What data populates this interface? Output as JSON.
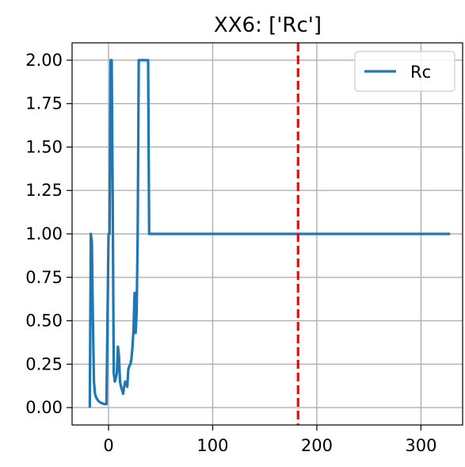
{
  "chart_data": {
    "type": "line",
    "title": "XX6: ['Rc']",
    "xlabel": "",
    "ylabel": "",
    "xlim": [
      -35,
      340
    ],
    "ylim": [
      -0.1,
      2.1
    ],
    "xticks": [
      0,
      100,
      200,
      300
    ],
    "xtick_labels": [
      "0",
      "100",
      "200",
      "300"
    ],
    "yticks": [
      0.0,
      0.25,
      0.5,
      0.75,
      1.0,
      1.25,
      1.5,
      1.75,
      2.0
    ],
    "ytick_labels": [
      "0.00",
      "0.25",
      "0.50",
      "0.75",
      "1.00",
      "1.25",
      "1.50",
      "1.75",
      "2.00"
    ],
    "grid": true,
    "legend": {
      "position": "top-right",
      "entries": [
        "Rc"
      ]
    },
    "series": [
      {
        "name": "Rc",
        "color": "#1f77b4",
        "x": [
          -18,
          -17,
          -16,
          -15,
          -14,
          -13,
          -12,
          -11,
          -10,
          -8,
          -6,
          -4,
          -2,
          0,
          1,
          2,
          3,
          4,
          5,
          6,
          7,
          8,
          9,
          10,
          11,
          12,
          13,
          14,
          15,
          16,
          17,
          18,
          19,
          20,
          21,
          22,
          23,
          24,
          25,
          26,
          27,
          28,
          29,
          30,
          35,
          38,
          39,
          40,
          100,
          200,
          300,
          328
        ],
        "y": [
          0.0,
          1.0,
          0.95,
          0.5,
          0.15,
          0.08,
          0.06,
          0.05,
          0.04,
          0.03,
          0.025,
          0.02,
          0.02,
          1.0,
          1.0,
          2.0,
          2.0,
          1.2,
          0.2,
          0.15,
          0.17,
          0.2,
          0.35,
          0.3,
          0.15,
          0.12,
          0.1,
          0.08,
          0.12,
          0.15,
          0.14,
          0.12,
          0.22,
          0.24,
          0.25,
          0.28,
          0.35,
          0.45,
          0.66,
          0.43,
          0.55,
          1.0,
          2.0,
          2.0,
          2.0,
          2.0,
          1.0,
          1.0,
          1.0,
          1.0,
          1.0,
          1.0
        ]
      }
    ],
    "reference_lines": [
      {
        "orientation": "vertical",
        "x": 182,
        "color": "#ff0000",
        "style": "dashed"
      }
    ]
  }
}
